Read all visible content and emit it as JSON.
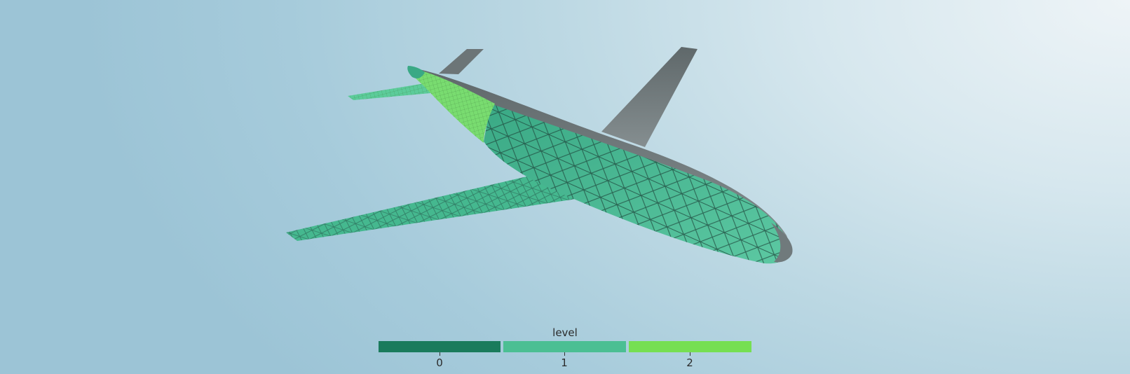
{
  "colorbar": {
    "title": "level",
    "entries": [
      {
        "label": "0",
        "color": "#1a7b5c"
      },
      {
        "label": "1",
        "color": "#4bbf93"
      },
      {
        "label": "2",
        "color": "#76df52"
      }
    ]
  },
  "scene": {
    "object": "airplane-mesh",
    "colors": {
      "base_gray": "#707a7c",
      "level_0": "#1a7b5c",
      "level_1": "#4bbf93",
      "level_2": "#76df52",
      "mesh_lines": "#23453c"
    }
  }
}
